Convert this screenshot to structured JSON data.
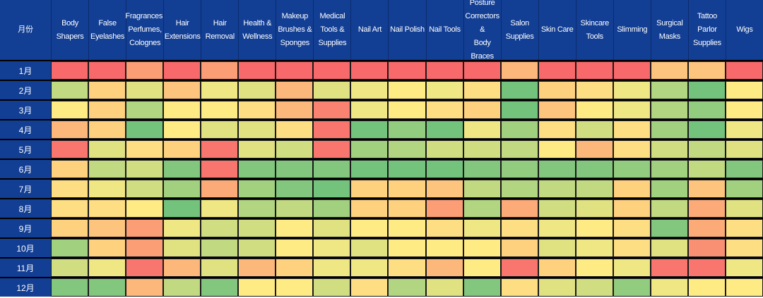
{
  "chart_data": {
    "type": "heatmap",
    "corner_label": "月份",
    "columns": [
      "Body\nShapers",
      "False\nEyelashes",
      "Fragrances,\nPerfumes,\nColognes",
      "Hair\nExtensions",
      "Hair\nRemoval",
      "Health &\nWellness",
      "Makeup\nBrushes &\nSponges",
      "Medical\nTools &\nSupplies",
      "Nail Art",
      "Nail Polish",
      "Nail Tools",
      "Posture\nCorrectors &\nBody Braces",
      "Salon\nSupplies",
      "Skin Care",
      "Skincare\nTools",
      "Slimming",
      "Surgical\nMasks",
      "Tattoo Parlor\nSupplies",
      "Wigs"
    ],
    "rows": [
      "1月",
      "2月",
      "3月",
      "4月",
      "5月",
      "6月",
      "7月",
      "8月",
      "9月",
      "10月",
      "11月",
      "12月"
    ],
    "color_scale": [
      "#63be7b",
      "#ffeb84",
      "#f8696b"
    ],
    "values": [
      [
        1.0,
        1.0,
        0.8,
        1.0,
        0.8,
        1.0,
        1.0,
        1.0,
        1.0,
        1.0,
        1.0,
        1.0,
        0.7,
        1.0,
        1.0,
        1.0,
        0.65,
        0.65,
        1.0
      ],
      [
        0.3,
        0.6,
        0.4,
        0.65,
        0.45,
        0.4,
        0.7,
        0.4,
        0.45,
        0.5,
        0.45,
        0.55,
        0.05,
        0.6,
        0.55,
        0.45,
        0.25,
        0.05,
        0.5
      ],
      [
        0.5,
        0.6,
        0.25,
        0.5,
        0.5,
        0.55,
        0.7,
        0.9,
        0.45,
        0.5,
        0.55,
        0.6,
        0.05,
        0.65,
        0.5,
        0.45,
        0.25,
        0.15,
        0.5
      ],
      [
        0.7,
        0.6,
        0.05,
        0.5,
        0.4,
        0.4,
        0.55,
        0.95,
        0.05,
        0.15,
        0.05,
        0.45,
        0.2,
        0.55,
        0.35,
        0.55,
        0.2,
        0.05,
        0.45
      ],
      [
        0.95,
        0.4,
        0.55,
        0.6,
        0.95,
        0.4,
        0.35,
        0.95,
        0.2,
        0.25,
        0.35,
        0.35,
        0.3,
        0.5,
        0.7,
        0.55,
        0.35,
        0.3,
        0.4
      ],
      [
        0.6,
        0.3,
        0.35,
        0.1,
        0.95,
        0.1,
        0.1,
        0.1,
        0.05,
        0.05,
        0.05,
        0.1,
        0.15,
        0.1,
        0.1,
        0.15,
        0.2,
        0.3,
        0.1
      ],
      [
        0.55,
        0.45,
        0.35,
        0.2,
        0.75,
        0.2,
        0.1,
        0.05,
        0.6,
        0.6,
        0.65,
        0.3,
        0.25,
        0.3,
        0.3,
        0.6,
        0.2,
        0.65,
        0.2
      ],
      [
        0.55,
        0.55,
        0.5,
        0.05,
        0.45,
        0.25,
        0.3,
        0.2,
        0.6,
        0.6,
        0.8,
        0.25,
        0.75,
        0.35,
        0.4,
        0.6,
        0.3,
        0.75,
        0.4
      ],
      [
        0.6,
        0.65,
        0.8,
        0.45,
        0.35,
        0.35,
        0.5,
        0.4,
        0.5,
        0.5,
        0.55,
        0.45,
        0.55,
        0.45,
        0.5,
        0.55,
        0.1,
        0.75,
        0.55
      ],
      [
        0.2,
        0.6,
        0.8,
        0.4,
        0.3,
        0.35,
        0.5,
        0.45,
        0.4,
        0.5,
        0.5,
        0.5,
        0.6,
        0.4,
        0.45,
        0.55,
        0.4,
        0.85,
        0.55
      ],
      [
        0.35,
        0.45,
        0.95,
        0.7,
        0.4,
        0.7,
        0.6,
        0.45,
        0.45,
        0.55,
        0.7,
        0.5,
        0.95,
        0.6,
        0.5,
        0.45,
        0.95,
        0.95,
        0.45
      ],
      [
        0.1,
        0.1,
        0.7,
        0.3,
        0.1,
        0.5,
        0.5,
        0.35,
        0.55,
        0.25,
        0.4,
        0.1,
        0.55,
        0.4,
        0.35,
        0.15,
        0.45,
        0.5,
        0.5
      ]
    ]
  }
}
